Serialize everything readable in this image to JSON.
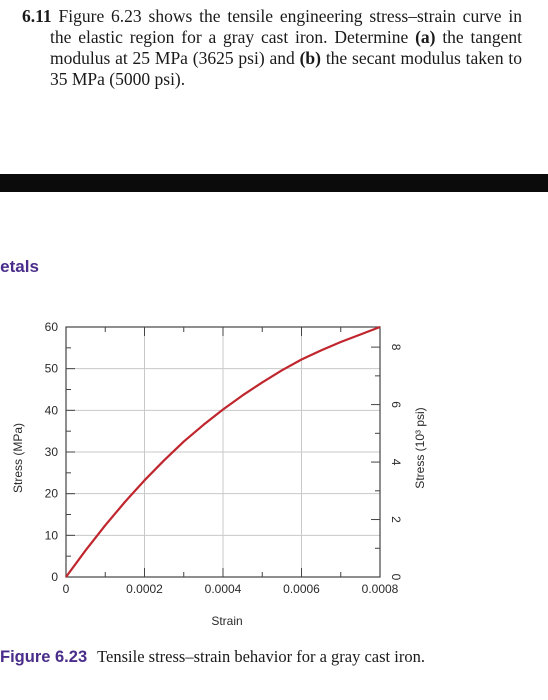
{
  "problem": {
    "number": "6.11",
    "text_intro": "Figure 6.23 shows the tensile engineering stress–strain curve in the elastic region for a gray cast iron. Determine",
    "part_a_label": "(a)",
    "part_a_text": "the tangent modulus at 25 MPa (3625 psi) and",
    "part_b_label": "(b)",
    "part_b_text": "the secant modulus taken to 35 MPa (5000 psi)."
  },
  "chapter_tab": "Metals",
  "chart_data": {
    "type": "line",
    "xlabel": "Strain",
    "ylabel": "Stress (MPa)",
    "y2label": "Stress (10³ psi)",
    "xlim": [
      0,
      0.0008
    ],
    "ylim": [
      0,
      60
    ],
    "y2lim": [
      0,
      8.7
    ],
    "x_ticks": [
      "0",
      "0.0002",
      "0.0004",
      "0.0006",
      "0.0008"
    ],
    "y_ticks": [
      "0",
      "10",
      "20",
      "30",
      "40",
      "50",
      "60"
    ],
    "y2_ticks": [
      "0",
      "2",
      "4",
      "6",
      "8"
    ],
    "grid": true,
    "series": [
      {
        "color": "#c0262d",
        "x": [
          0,
          5e-05,
          0.0001,
          0.00015,
          0.0002,
          0.00025,
          0.0003,
          0.00035,
          0.0004,
          0.00045,
          0.0005,
          0.00055,
          0.0006,
          0.00065,
          0.0007,
          0.00075,
          0.0008
        ],
        "y": [
          0,
          6.4,
          12.4,
          18,
          23.2,
          28,
          32.5,
          36.5,
          40.2,
          43.6,
          46.7,
          49.6,
          52.2,
          54.4,
          56.4,
          58.2,
          60
        ]
      }
    ]
  },
  "caption": {
    "label": "Figure 6.23",
    "text": "Tensile stress–strain behavior for a gray cast iron."
  }
}
